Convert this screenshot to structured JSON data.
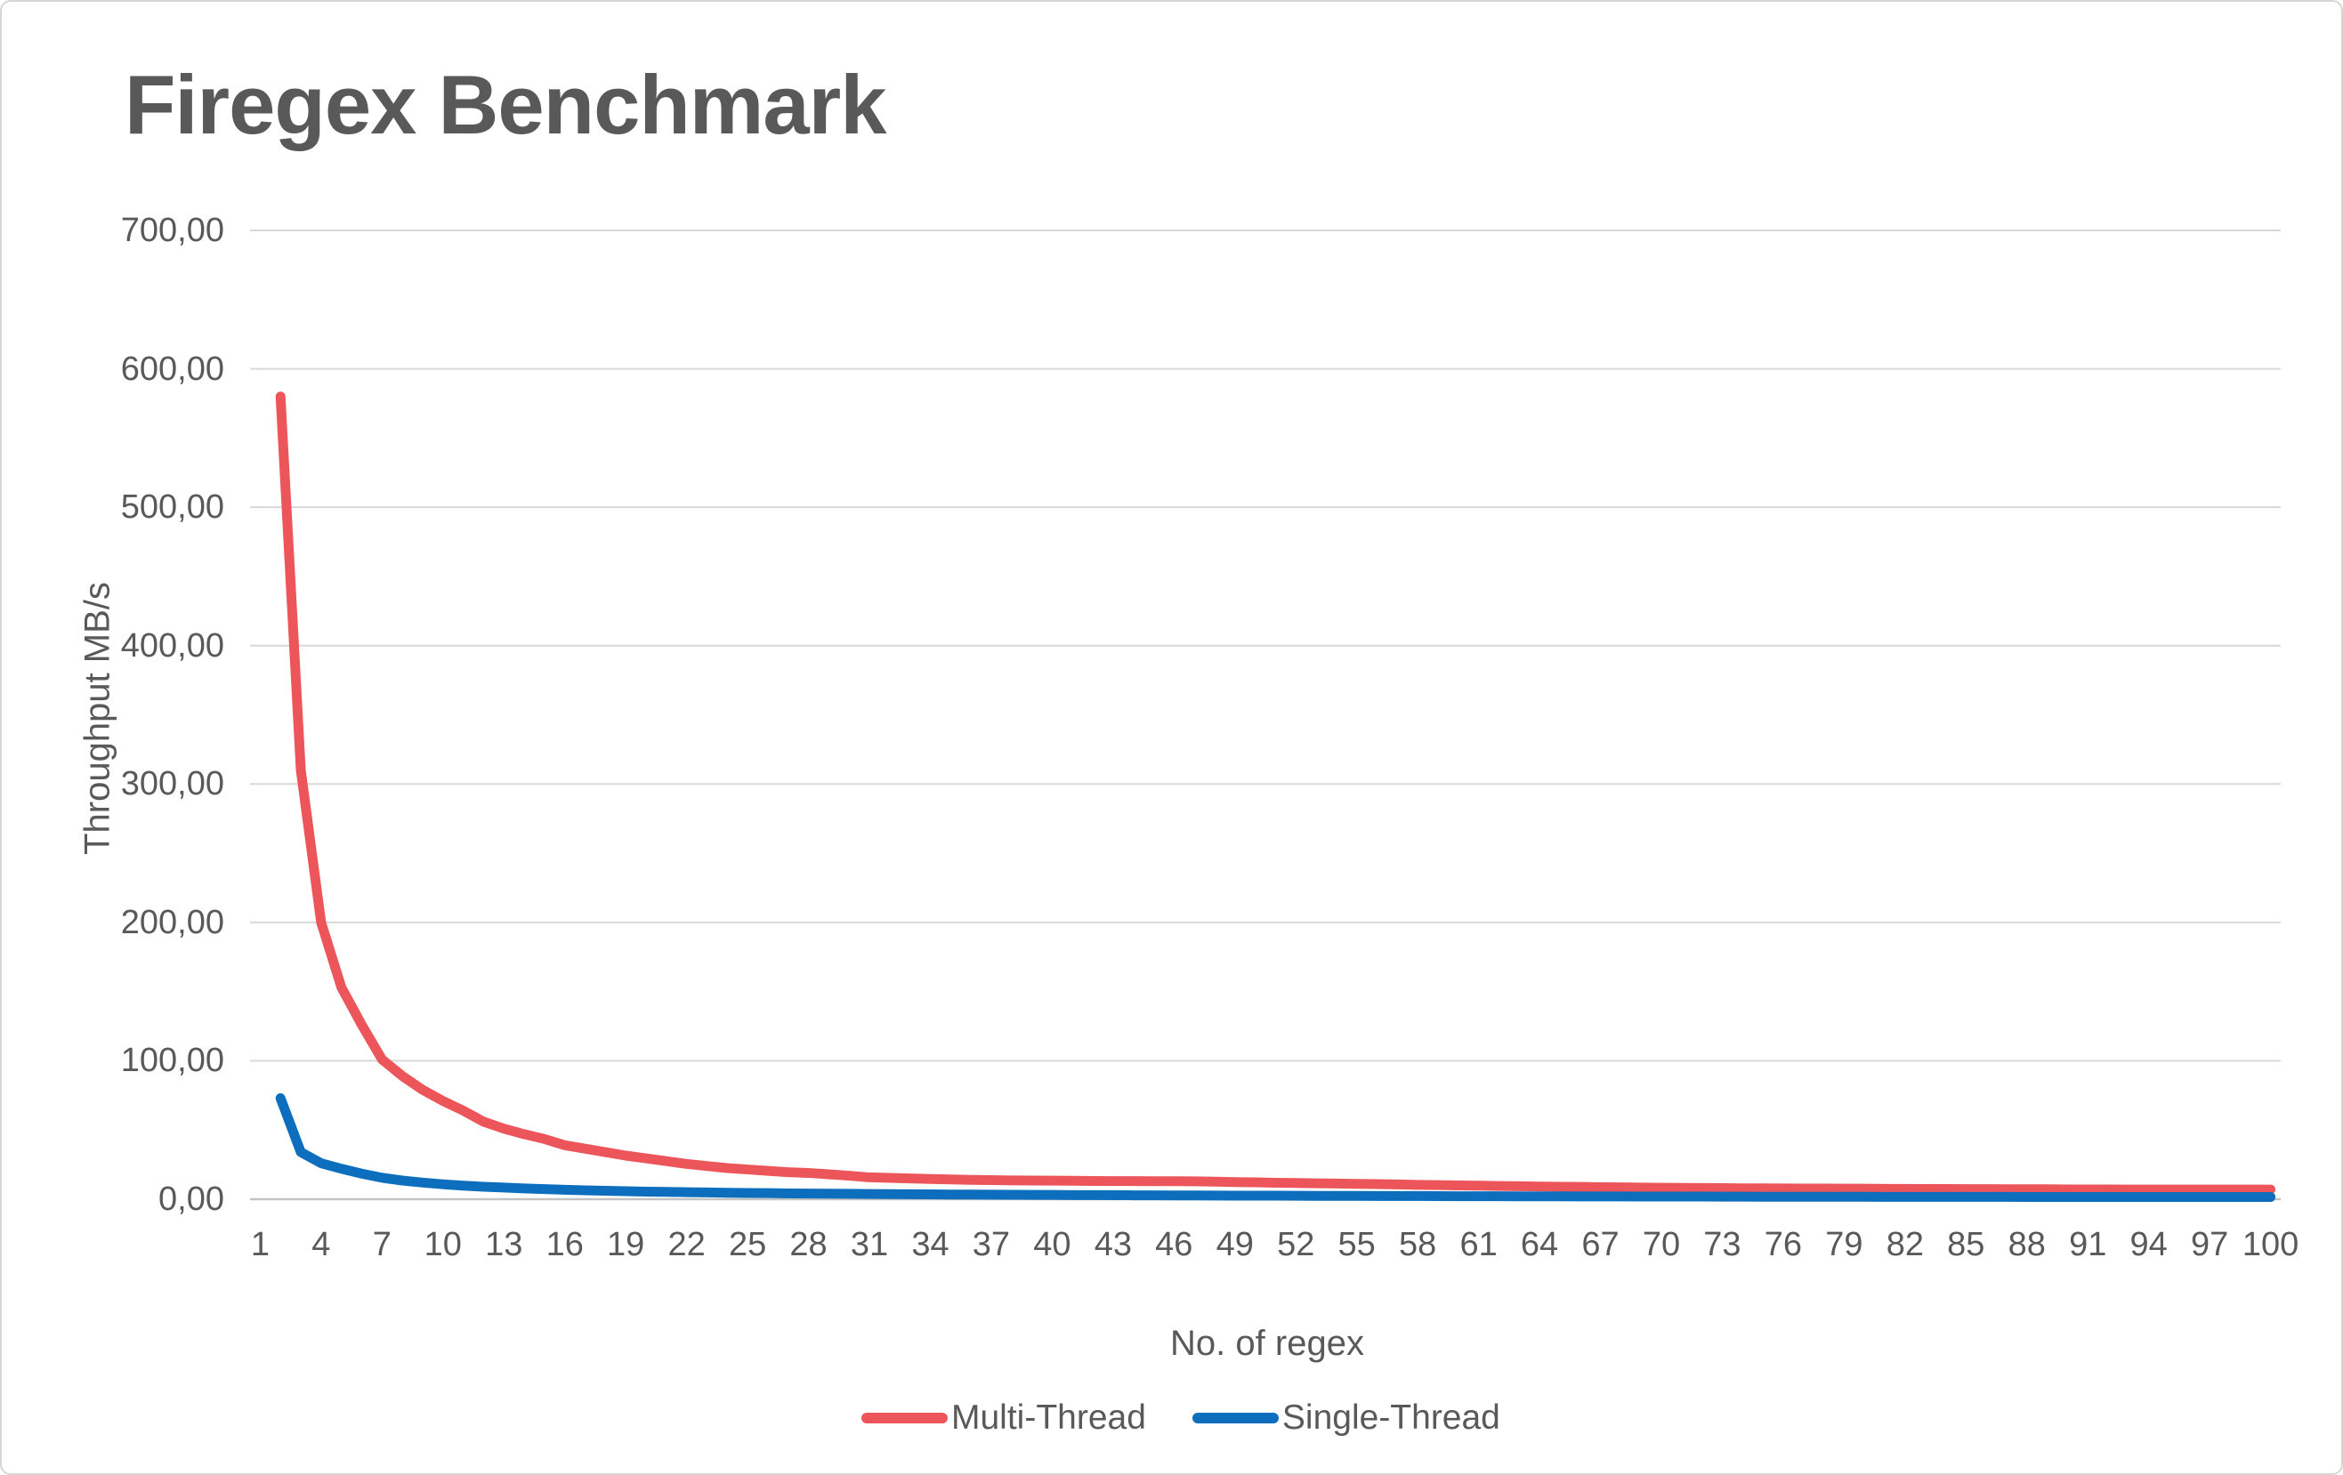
{
  "chart": {
    "title": "Firegex Benchmark",
    "y_axis_label": "Throughput MB/s",
    "x_axis_label": "No. of regex",
    "legend": [
      "Multi-Thread",
      "Single-Thread"
    ]
  },
  "colors": {
    "multi_thread": "#ec565a",
    "single_thread": "#0d6ebd",
    "text": "#595959",
    "gridline": "#d9d9d9",
    "axis_line": "#c3c3c3"
  },
  "chart_data": {
    "type": "line",
    "title": "Firegex Benchmark",
    "xlabel": "No. of regex",
    "ylabel": "Throughput MB/s",
    "ylim": [
      0,
      700
    ],
    "xlim": [
      1,
      100
    ],
    "grid": "horizontal",
    "legend_position": "bottom",
    "y_tick_labels": [
      "700,00",
      "600,00",
      "500,00",
      "400,00",
      "300,00",
      "200,00",
      "100,00",
      "0,00"
    ],
    "y_tick_values": [
      700,
      600,
      500,
      400,
      300,
      200,
      100,
      0
    ],
    "x_tick_values": [
      1,
      4,
      7,
      10,
      13,
      16,
      19,
      22,
      25,
      28,
      31,
      34,
      37,
      40,
      43,
      46,
      49,
      52,
      55,
      58,
      61,
      64,
      67,
      70,
      73,
      76,
      79,
      82,
      85,
      88,
      91,
      94,
      97,
      100
    ],
    "series": [
      {
        "name": "Multi-Thread",
        "color": "#ec565a",
        "x_start": 2,
        "values": [
          580,
          310,
          200,
          153,
          126,
          101,
          89,
          79,
          71,
          64,
          56,
          51,
          47,
          43.5,
          39,
          36.5,
          34,
          31.5,
          29.5,
          27.5,
          25.5,
          24,
          22.5,
          21.5,
          20.5,
          19.5,
          19,
          18,
          17,
          15.8,
          15.4,
          15,
          14.6,
          14.3,
          14,
          13.8,
          13.6,
          13.5,
          13.4,
          13.3,
          13.2,
          13.1,
          13.1,
          13,
          13,
          12.9,
          12.7,
          12.4,
          12.2,
          11.9,
          11.7,
          11.5,
          11.3,
          11.1,
          10.9,
          10.7,
          10.4,
          10.2,
          10,
          9.8,
          9.6,
          9.4,
          9.2,
          9,
          8.9,
          8.7,
          8.6,
          8.4,
          8.3,
          8.2,
          8.1,
          8,
          7.9,
          7.9,
          7.8,
          7.7,
          7.7,
          7.6,
          7.6,
          7.5,
          7.5,
          7.4,
          7.4,
          7.3,
          7.3,
          7.2,
          7.2,
          7.2,
          7.1,
          7.1,
          7.1,
          7,
          7,
          7,
          7,
          7,
          7,
          7,
          7
        ]
      },
      {
        "name": "Single-Thread",
        "color": "#0d6ebd",
        "x_start": 2,
        "values": [
          73,
          34,
          26,
          22,
          18.5,
          15.5,
          13.5,
          12,
          10.8,
          9.8,
          9,
          8.4,
          7.8,
          7.3,
          6.8,
          6.4,
          6.1,
          5.8,
          5.5,
          5.3,
          5.1,
          4.9,
          4.7,
          4.5,
          4.4,
          4.2,
          4.1,
          4,
          3.9,
          3.8,
          3.7,
          3.6,
          3.5,
          3.4,
          3.35,
          3.3,
          3.2,
          3.15,
          3.1,
          3,
          2.95,
          2.9,
          2.85,
          2.8,
          2.75,
          2.7,
          2.65,
          2.6,
          2.6,
          2.55,
          2.5,
          2.45,
          2.4,
          2.4,
          2.35,
          2.3,
          2.3,
          2.25,
          2.2,
          2.2,
          2.15,
          2.1,
          2.1,
          2.05,
          2,
          2,
          2,
          1.95,
          1.95,
          1.9,
          1.9,
          1.85,
          1.85,
          1.8,
          1.8,
          1.8,
          1.75,
          1.75,
          1.75,
          1.7,
          1.7,
          1.7,
          1.7,
          1.65,
          1.65,
          1.65,
          1.6,
          1.6,
          1.6,
          1.6,
          1.6,
          1.6,
          1.6,
          1.6,
          1.6,
          1.6,
          1.6,
          1.6,
          1.6
        ]
      }
    ]
  }
}
